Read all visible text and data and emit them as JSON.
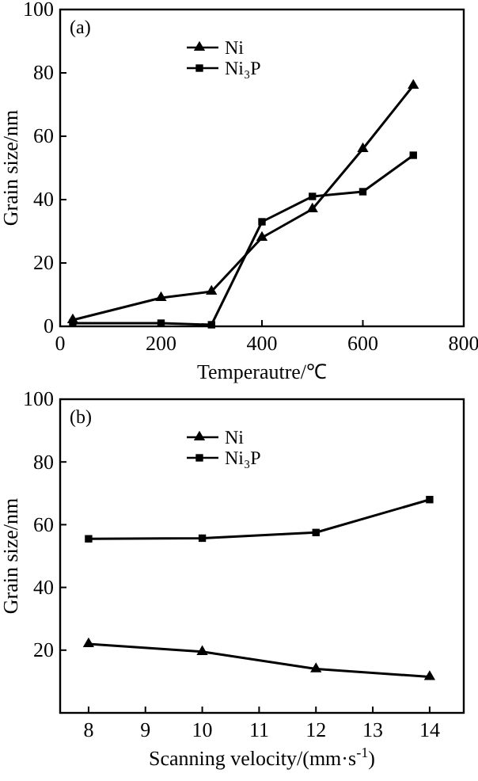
{
  "chart_data": [
    {
      "type": "line",
      "xlabel": "Temperautre/℃",
      "ylabel": "Grain size/nm",
      "annotations": [
        "(a)"
      ],
      "xlim": [
        0,
        800
      ],
      "xticks": [
        0,
        200,
        400,
        600,
        800
      ],
      "ylim": [
        0,
        100
      ],
      "yticks": [
        0,
        20,
        40,
        60,
        80,
        100
      ],
      "legend": "top left",
      "x": [
        25,
        200,
        300,
        400,
        500,
        600,
        700
      ],
      "series": [
        {
          "name": "Ni",
          "color": "#000000",
          "marker": "triangle",
          "values": [
            2,
            9,
            11,
            28,
            37,
            56,
            76
          ]
        },
        {
          "name": "Ni₃P",
          "color": "#000000",
          "marker": "square",
          "values": [
            1,
            1,
            0.5,
            33,
            41,
            42.5,
            54
          ]
        }
      ]
    },
    {
      "type": "line",
      "xlabel": "Scanning velocity/(mm·s$^{-1}$)",
      "ylabel": "Grain size/nm",
      "annotations": [
        "(b)"
      ],
      "xlim": [
        7.5,
        14.6
      ],
      "xticks": [
        8,
        9,
        10,
        11,
        12,
        13,
        14
      ],
      "ylim": [
        0,
        100
      ],
      "yticks": [
        20,
        40,
        60,
        80,
        100
      ],
      "legend": "top left",
      "x": [
        8,
        10,
        12,
        14
      ],
      "series": [
        {
          "name": "Ni",
          "color": "#000000",
          "marker": "triangle",
          "values": [
            22,
            19.5,
            14,
            11.5
          ]
        },
        {
          "name": "Ni₃P",
          "color": "#000000",
          "marker": "square",
          "values": [
            55.5,
            55.7,
            57.5,
            68
          ]
        }
      ]
    }
  ]
}
